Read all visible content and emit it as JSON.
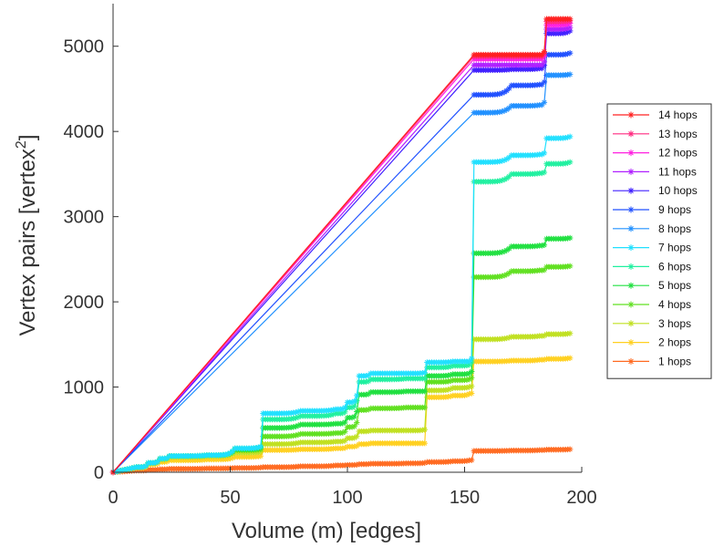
{
  "chart_data": {
    "type": "line",
    "title": "",
    "xlabel": "Volume (m) [edges]",
    "ylabel_main": "Vertex pairs [vertex",
    "ylabel_sup": "2",
    "ylabel_close": "]",
    "xlim": [
      0,
      200
    ],
    "ylim": [
      0,
      5500
    ],
    "xticks": [
      0,
      50,
      100,
      150,
      200
    ],
    "yticks": [
      0,
      1000,
      2000,
      3000,
      4000,
      5000
    ],
    "grid": false,
    "legend_position": "right",
    "marker": "asterisk",
    "breakpoints_x": [
      0,
      10,
      15,
      20,
      24,
      40,
      52,
      63,
      64,
      80,
      95,
      100,
      105,
      110,
      125,
      133,
      134,
      145,
      152,
      154,
      170,
      182,
      185,
      195
    ],
    "series": [
      {
        "name": "14 hops",
        "color": "#ff2020",
        "values": [
          0,
          null,
          null,
          null,
          null,
          null,
          null,
          null,
          null,
          null,
          null,
          null,
          null,
          null,
          null,
          null,
          null,
          null,
          null,
          4900,
          4900,
          4900,
          5320,
          5320
        ]
      },
      {
        "name": "13 hops",
        "color": "#ff2a80",
        "values": [
          0,
          null,
          null,
          null,
          null,
          null,
          null,
          null,
          null,
          null,
          null,
          null,
          null,
          null,
          null,
          null,
          null,
          null,
          null,
          4880,
          4880,
          4880,
          5290,
          5300
        ]
      },
      {
        "name": "12 hops",
        "color": "#ff20e0",
        "values": [
          0,
          null,
          null,
          null,
          null,
          null,
          null,
          null,
          null,
          null,
          null,
          null,
          null,
          null,
          null,
          null,
          null,
          null,
          null,
          4850,
          4850,
          4850,
          5250,
          5270
        ]
      },
      {
        "name": "11 hops",
        "color": "#b020ff",
        "values": [
          0,
          null,
          null,
          null,
          null,
          null,
          null,
          null,
          null,
          null,
          null,
          null,
          null,
          null,
          null,
          null,
          null,
          null,
          null,
          4780,
          4780,
          4780,
          5200,
          5220
        ]
      },
      {
        "name": "10 hops",
        "color": "#4020ff",
        "values": [
          0,
          null,
          null,
          null,
          null,
          null,
          null,
          null,
          null,
          null,
          null,
          null,
          null,
          null,
          null,
          null,
          null,
          null,
          null,
          4720,
          4730,
          4740,
          5150,
          5180
        ]
      },
      {
        "name": "9 hops",
        "color": "#2050ff",
        "values": [
          0,
          null,
          null,
          null,
          null,
          null,
          null,
          null,
          null,
          null,
          null,
          null,
          null,
          null,
          null,
          null,
          null,
          null,
          null,
          4430,
          4540,
          4550,
          4900,
          4920
        ]
      },
      {
        "name": "8 hops",
        "color": "#2090ff",
        "values": [
          0,
          null,
          null,
          null,
          null,
          null,
          null,
          null,
          null,
          null,
          null,
          null,
          null,
          null,
          null,
          null,
          null,
          null,
          null,
          4220,
          4300,
          4310,
          4660,
          4670
        ]
      },
      {
        "name": "7 hops",
        "color": "#20e0ff",
        "values": [
          0,
          60,
          110,
          160,
          190,
          200,
          280,
          300,
          690,
          720,
          740,
          820,
          1130,
          1160,
          1160,
          1170,
          1290,
          1300,
          1300,
          3640,
          3720,
          3730,
          3920,
          3940
        ]
      },
      {
        "name": "6 hops",
        "color": "#20f0a0",
        "values": [
          0,
          60,
          110,
          160,
          190,
          200,
          280,
          300,
          620,
          660,
          690,
          760,
          1060,
          1090,
          1100,
          1100,
          1230,
          1250,
          1260,
          3410,
          3500,
          3510,
          3620,
          3640
        ]
      },
      {
        "name": "5 hops",
        "color": "#20e040",
        "values": [
          0,
          60,
          110,
          160,
          190,
          200,
          270,
          290,
          520,
          560,
          570,
          640,
          910,
          940,
          950,
          950,
          1130,
          1150,
          1160,
          2570,
          2650,
          2660,
          2740,
          2750
        ]
      },
      {
        "name": "4 hops",
        "color": "#60e020",
        "values": [
          0,
          60,
          110,
          160,
          190,
          200,
          260,
          270,
          420,
          450,
          460,
          530,
          730,
          750,
          760,
          760,
          1060,
          1080,
          1090,
          2290,
          2360,
          2370,
          2410,
          2420
        ]
      },
      {
        "name": "3 hops",
        "color": "#c0e020",
        "values": [
          0,
          60,
          110,
          150,
          180,
          190,
          230,
          240,
          330,
          350,
          360,
          400,
          480,
          490,
          490,
          500,
          960,
          990,
          1000,
          1560,
          1590,
          1600,
          1620,
          1630
        ]
      },
      {
        "name": "2 hops",
        "color": "#ffd020",
        "values": [
          0,
          50,
          90,
          120,
          140,
          150,
          180,
          190,
          260,
          270,
          280,
          300,
          330,
          340,
          340,
          340,
          880,
          900,
          920,
          1300,
          1310,
          1320,
          1330,
          1340
        ]
      },
      {
        "name": "1 hops",
        "color": "#ff6a20",
        "values": [
          0,
          20,
          30,
          35,
          40,
          45,
          50,
          55,
          60,
          70,
          80,
          85,
          95,
          100,
          105,
          110,
          120,
          130,
          140,
          250,
          255,
          260,
          265,
          270
        ]
      }
    ]
  }
}
